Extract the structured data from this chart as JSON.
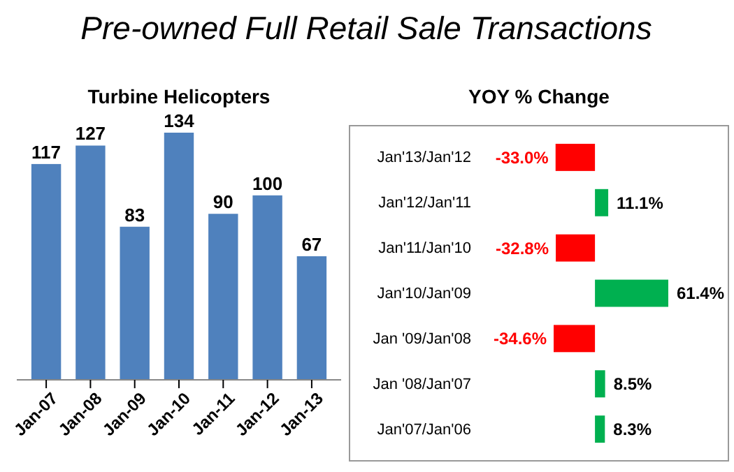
{
  "chart_data": [
    {
      "type": "bar",
      "title": "Pre-owned Full Retail Sale Transactions",
      "subtitle": "Turbine Helicopters",
      "categories": [
        "Jan-07",
        "Jan-08",
        "Jan-09",
        "Jan-10",
        "Jan-11",
        "Jan-12",
        "Jan-13"
      ],
      "values": [
        117,
        127,
        83,
        134,
        90,
        100,
        67
      ],
      "color": "#4f81bd",
      "data_labels": true,
      "tick_labels": "x"
    },
    {
      "type": "bar",
      "title": "YOY % Change",
      "orientation": "horizontal",
      "categories": [
        "Jan'13/Jan'12",
        "Jan'12/Jan'11",
        "Jan'11/Jan'10",
        "Jan'10/Jan'09",
        "Jan '09/Jan'08",
        "Jan '08/Jan'07",
        "Jan'07/Jan'06"
      ],
      "values": [
        -33.0,
        11.1,
        -32.8,
        61.4,
        -34.6,
        8.5,
        8.3
      ],
      "colors": [
        "#ff0000",
        "#00b050",
        "#ff0000",
        "#00b050",
        "#ff0000",
        "#00b050",
        "#00b050"
      ],
      "value_labels": [
        "-33.0%",
        "11.1%",
        "-32.8%",
        "61.4%",
        "-34.6%",
        "8.5%",
        "8.3%"
      ],
      "tick_labels": "y"
    }
  ]
}
